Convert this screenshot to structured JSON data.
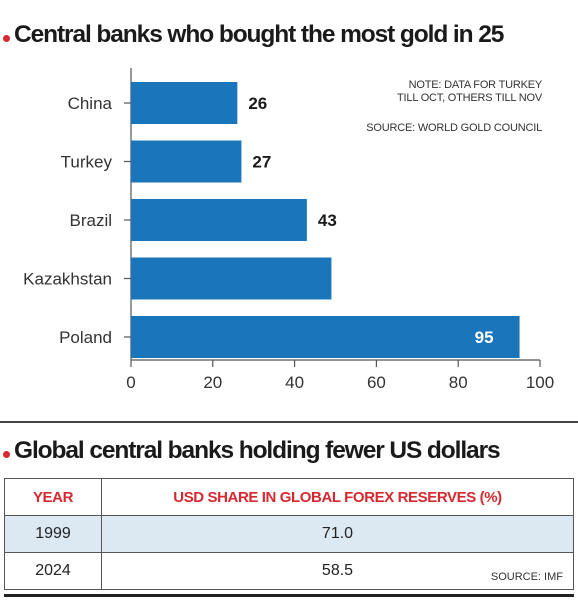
{
  "chart_data": {
    "type": "bar",
    "orientation": "horizontal",
    "title": "Central banks who bought the most gold in 25",
    "categories": [
      "China",
      "Turkey",
      "Brazil",
      "Kazakhstan",
      "Poland"
    ],
    "values": [
      26,
      27,
      43,
      49,
      95
    ],
    "data_labels": [
      "26",
      "27",
      "43",
      "",
      "95"
    ],
    "xlim": [
      0,
      100
    ],
    "xticks": [
      0,
      20,
      40,
      60,
      80,
      100
    ],
    "bar_color": "#1b75bb",
    "grid": false,
    "note_lines": [
      "NOTE: DATA FOR TURKEY",
      "TILL OCT, OTHERS TILL NOV"
    ],
    "source": "SOURCE: WORLD GOLD COUNCIL"
  },
  "table": {
    "title": "Global central banks holding fewer US dollars",
    "headers": [
      "YEAR",
      "USD SHARE IN GLOBAL FOREX RESERVES (%)"
    ],
    "rows": [
      {
        "year": "1999",
        "value": "71.0"
      },
      {
        "year": "2024",
        "value": "58.5"
      }
    ],
    "source": "SOURCE: IMF"
  },
  "colors": {
    "accent_red": "#d7282f",
    "bar_blue": "#1b75bb",
    "row_shade": "#dde9f2"
  }
}
